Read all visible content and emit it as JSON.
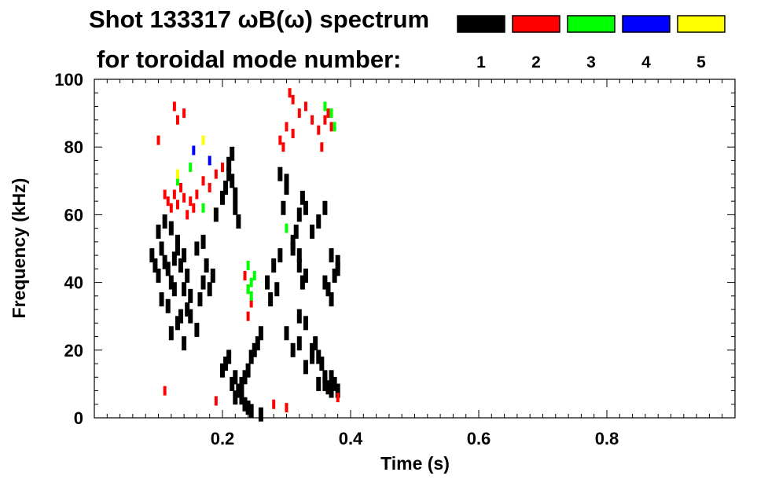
{
  "chart_data": {
    "type": "scatter",
    "title_line1": "Shot 133317 ωB(ω) spectrum",
    "title_line2": "for toroidal mode number:",
    "xlabel": "Time (s)",
    "ylabel": "Frequency (kHz)",
    "xlim": [
      0,
      1.0
    ],
    "ylim": [
      0,
      100
    ],
    "xticks": [
      0.2,
      0.4,
      0.6,
      0.8
    ],
    "yticks": [
      0,
      20,
      40,
      60,
      80,
      100
    ],
    "legend_placement": "top-right",
    "legend": [
      {
        "name": "1",
        "color": "#000000"
      },
      {
        "name": "2",
        "color": "#ff0000"
      },
      {
        "name": "3",
        "color": "#00ff00"
      },
      {
        "name": "4",
        "color": "#0000ff"
      },
      {
        "name": "5",
        "color": "#ffff00"
      }
    ],
    "series": [
      {
        "name": "1",
        "color": "#000000",
        "x": [
          0.09,
          0.095,
          0.1,
          0.105,
          0.11,
          0.115,
          0.12,
          0.125,
          0.13,
          0.135,
          0.14,
          0.145,
          0.15,
          0.1,
          0.11,
          0.12,
          0.13,
          0.14,
          0.105,
          0.115,
          0.125,
          0.135,
          0.145,
          0.12,
          0.13,
          0.14,
          0.15,
          0.16,
          0.165,
          0.17,
          0.175,
          0.18,
          0.185,
          0.16,
          0.17,
          0.19,
          0.2,
          0.205,
          0.21,
          0.215,
          0.22,
          0.21,
          0.215,
          0.22,
          0.225,
          0.22,
          0.225,
          0.23,
          0.235,
          0.24,
          0.245,
          0.25,
          0.255,
          0.26,
          0.2,
          0.205,
          0.21,
          0.215,
          0.22,
          0.225,
          0.23,
          0.235,
          0.24,
          0.245,
          0.26,
          0.27,
          0.275,
          0.28,
          0.285,
          0.29,
          0.295,
          0.3,
          0.29,
          0.3,
          0.31,
          0.315,
          0.32,
          0.325,
          0.33,
          0.32,
          0.325,
          0.33,
          0.32,
          0.33,
          0.34,
          0.345,
          0.35,
          0.355,
          0.36,
          0.365,
          0.37,
          0.375,
          0.38,
          0.34,
          0.35,
          0.36,
          0.37,
          0.38,
          0.3,
          0.31,
          0.32,
          0.33,
          0.34,
          0.35,
          0.36,
          0.37,
          0.36,
          0.365,
          0.37,
          0.375,
          0.38,
          0.31,
          0.32
        ],
        "y": [
          48,
          45,
          42,
          50,
          46,
          44,
          40,
          47,
          52,
          45,
          38,
          42,
          36,
          55,
          58,
          56,
          50,
          48,
          35,
          33,
          38,
          30,
          32,
          25,
          28,
          22,
          30,
          26,
          35,
          40,
          45,
          38,
          42,
          50,
          52,
          60,
          65,
          68,
          72,
          70,
          66,
          75,
          78,
          62,
          58,
          6,
          8,
          10,
          12,
          14,
          18,
          20,
          22,
          25,
          14,
          16,
          18,
          10,
          12,
          8,
          6,
          4,
          3,
          2,
          1,
          40,
          35,
          45,
          38,
          48,
          62,
          70,
          72,
          68,
          50,
          55,
          60,
          65,
          62,
          45,
          40,
          42,
          30,
          28,
          20,
          22,
          18,
          16,
          40,
          38,
          35,
          42,
          44,
          55,
          58,
          62,
          48,
          46,
          25,
          20,
          22,
          15,
          18,
          10,
          12,
          8,
          10,
          9,
          12,
          10,
          8,
          52,
          48
        ]
      },
      {
        "name": "2",
        "color": "#ff0000",
        "x": [
          0.1,
          0.11,
          0.115,
          0.12,
          0.125,
          0.13,
          0.135,
          0.14,
          0.145,
          0.15,
          0.155,
          0.16,
          0.17,
          0.18,
          0.19,
          0.2,
          0.13,
          0.14,
          0.125,
          0.235,
          0.24,
          0.24,
          0.245,
          0.29,
          0.295,
          0.3,
          0.31,
          0.32,
          0.33,
          0.34,
          0.35,
          0.355,
          0.36,
          0.365,
          0.37,
          0.11,
          0.19,
          0.28,
          0.3,
          0.38,
          0.305,
          0.31
        ],
        "y": [
          82,
          66,
          64,
          62,
          66,
          63,
          68,
          65,
          60,
          64,
          62,
          66,
          70,
          68,
          72,
          74,
          88,
          90,
          92,
          42,
          38,
          30,
          34,
          82,
          80,
          86,
          84,
          90,
          92,
          88,
          85,
          80,
          88,
          90,
          86,
          8,
          5,
          4,
          3,
          6,
          96,
          94
        ]
      },
      {
        "name": "3",
        "color": "#00ff00",
        "x": [
          0.24,
          0.245,
          0.25,
          0.24,
          0.245,
          0.36,
          0.37,
          0.375,
          0.3,
          0.13,
          0.15,
          0.17
        ],
        "y": [
          38,
          40,
          42,
          45,
          36,
          92,
          90,
          86,
          56,
          70,
          74,
          62
        ]
      },
      {
        "name": "4",
        "color": "#0000ff",
        "x": [
          0.155,
          0.18
        ],
        "y": [
          79,
          76
        ]
      },
      {
        "name": "5",
        "color": "#ffff00",
        "x": [
          0.13,
          0.17
        ],
        "y": [
          72,
          82
        ]
      }
    ]
  }
}
